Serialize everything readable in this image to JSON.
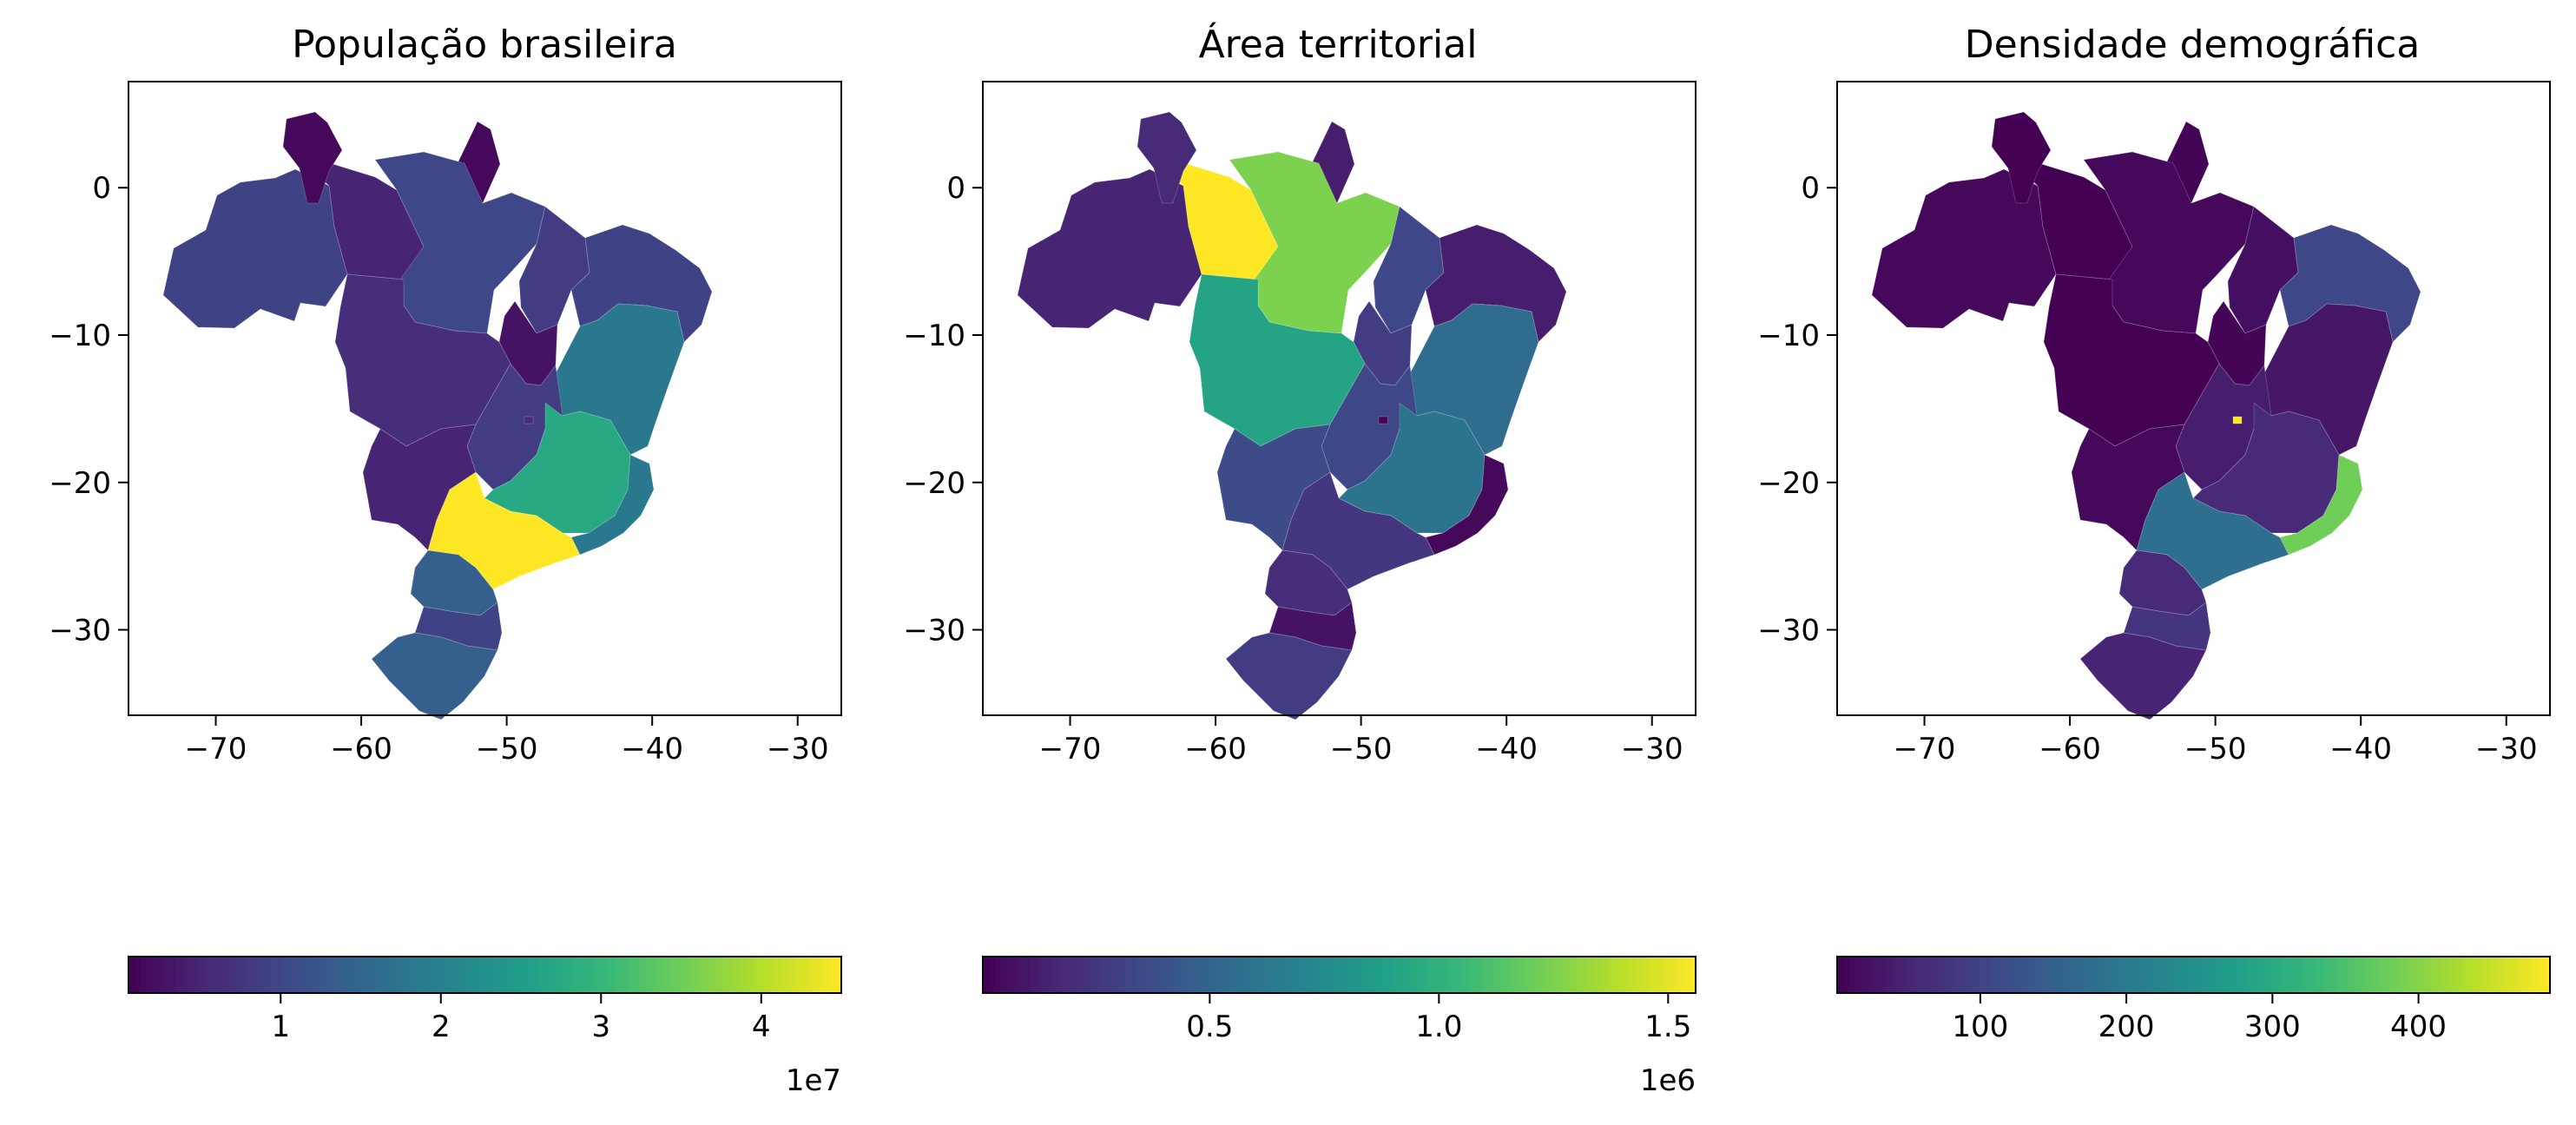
{
  "viridis": [
    "#440154",
    "#482878",
    "#3e4989",
    "#31688e",
    "#26828e",
    "#1f9e89",
    "#35b779",
    "#6ece58",
    "#b5de2b",
    "#fde725"
  ],
  "panels": [
    {
      "title": "População brasileira",
      "xticks": [
        {
          "v": -70,
          "label": "−70"
        },
        {
          "v": -60,
          "label": "−60"
        },
        {
          "v": -50,
          "label": "−50"
        },
        {
          "v": -40,
          "label": "−40"
        },
        {
          "v": -30,
          "label": "−30"
        }
      ],
      "yticks": [
        {
          "v": 0,
          "label": "0"
        },
        {
          "v": -10,
          "label": "−10"
        },
        {
          "v": -20,
          "label": "−20"
        },
        {
          "v": -30,
          "label": "−30"
        }
      ],
      "colorbar": {
        "min": 0.05,
        "max": 4.5,
        "ticks": [
          {
            "v": 1,
            "label": "1"
          },
          {
            "v": 2,
            "label": "2"
          },
          {
            "v": 3,
            "label": "3"
          },
          {
            "v": 4,
            "label": "4"
          }
        ],
        "offset": "1e7"
      },
      "regions": {
        "north_west": 0.2,
        "amazonas": 0.1,
        "roraima": 0.02,
        "amapa": 0.02,
        "para": 0.22,
        "maranhao": 0.18,
        "northeast_small": 0.2,
        "bahia": 0.4,
        "tocantins": 0.05,
        "mato_grosso": 0.13,
        "goias": 0.18,
        "mato_grosso_sul": 0.1,
        "minas": 0.6,
        "sao_paulo": 1.0,
        "rio_espirito": 0.4,
        "parana": 0.3,
        "santa_catarina": 0.2,
        "rio_grande_sul": 0.3,
        "df": 0.12
      }
    },
    {
      "title": "Área territorial",
      "xticks": [
        {
          "v": -70,
          "label": "−70"
        },
        {
          "v": -60,
          "label": "−60"
        },
        {
          "v": -50,
          "label": "−50"
        },
        {
          "v": -40,
          "label": "−40"
        },
        {
          "v": -30,
          "label": "−30"
        }
      ],
      "yticks": [
        {
          "v": 0,
          "label": "0"
        },
        {
          "v": -10,
          "label": "−10"
        },
        {
          "v": -20,
          "label": "−20"
        },
        {
          "v": -30,
          "label": "−30"
        }
      ],
      "colorbar": {
        "min": 0.005,
        "max": 1.56,
        "ticks": [
          {
            "v": 0.5,
            "label": "0.5"
          },
          {
            "v": 1.0,
            "label": "1.0"
          },
          {
            "v": 1.5,
            "label": "1.5"
          }
        ],
        "offset": "1e6"
      },
      "regions": {
        "north_west": 0.1,
        "amazonas": 1.0,
        "roraima": 0.12,
        "amapa": 0.08,
        "para": 0.8,
        "maranhao": 0.22,
        "northeast_small": 0.08,
        "bahia": 0.35,
        "tocantins": 0.18,
        "mato_grosso": 0.58,
        "goias": 0.22,
        "mato_grosso_sul": 0.23,
        "minas": 0.38,
        "sao_paulo": 0.16,
        "rio_espirito": 0.02,
        "parana": 0.13,
        "santa_catarina": 0.05,
        "rio_grande_sul": 0.18,
        "df": 0.0
      }
    },
    {
      "title": "Densidade demográfica",
      "xticks": [
        {
          "v": -70,
          "label": "−70"
        },
        {
          "v": -60,
          "label": "−60"
        },
        {
          "v": -50,
          "label": "−50"
        },
        {
          "v": -40,
          "label": "−40"
        },
        {
          "v": -30,
          "label": "−30"
        }
      ],
      "yticks": [
        {
          "v": 0,
          "label": "0"
        },
        {
          "v": -10,
          "label": "−10"
        },
        {
          "v": -20,
          "label": "−20"
        },
        {
          "v": -30,
          "label": "−30"
        }
      ],
      "colorbar": {
        "min": 2,
        "max": 490,
        "ticks": [
          {
            "v": 100,
            "label": "100"
          },
          {
            "v": 200,
            "label": "200"
          },
          {
            "v": 300,
            "label": "300"
          },
          {
            "v": 400,
            "label": "400"
          }
        ],
        "offset": ""
      },
      "regions": {
        "north_west": 0.02,
        "amazonas": 0.0,
        "roraima": 0.0,
        "amapa": 0.01,
        "para": 0.02,
        "maranhao": 0.04,
        "northeast_small": 0.22,
        "bahia": 0.06,
        "tocantins": 0.01,
        "mato_grosso": 0.0,
        "goias": 0.08,
        "mato_grosso_sul": 0.02,
        "minas": 0.12,
        "sao_paulo": 0.36,
        "rio_espirito": 0.78,
        "parana": 0.12,
        "santa_catarina": 0.15,
        "rio_grande_sul": 0.1,
        "df": 1.0
      }
    }
  ]
}
